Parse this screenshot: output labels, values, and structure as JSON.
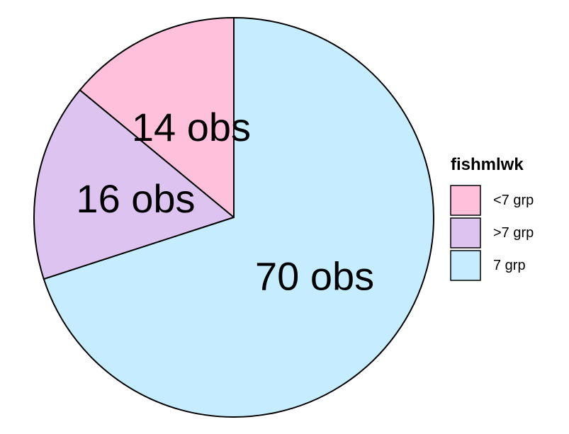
{
  "chart_data": {
    "type": "pie",
    "legend_title": "fishmlwk",
    "legend_position": "right",
    "start_angle_deg": 0,
    "direction": "counterclockwise",
    "slices": [
      {
        "category": "<7 grp",
        "value": 14,
        "label": "14 obs",
        "color": "#FFC0DC"
      },
      {
        "category": ">7 grp",
        "value": 16,
        "label": "16 obs",
        "color": "#DCC3F0"
      },
      {
        "category": "7 grp",
        "value": 70,
        "label": "70 obs",
        "color": "#C6ECFF"
      }
    ]
  }
}
